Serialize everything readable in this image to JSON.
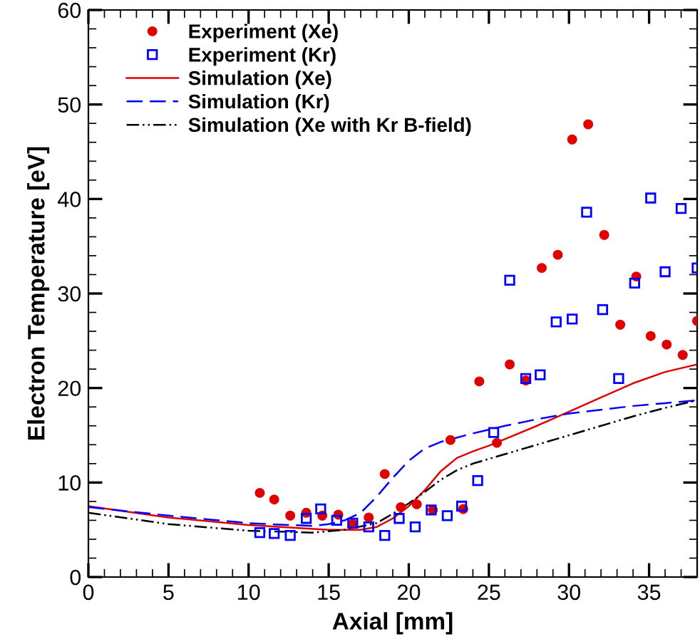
{
  "chart_data": {
    "type": "scatter",
    "xlabel": "Axial [mm]",
    "ylabel": "Electron Temperature [eV]",
    "xlim": [
      0,
      38
    ],
    "xticks": [
      0,
      5,
      10,
      15,
      20,
      25,
      30,
      35
    ],
    "ylim": [
      0,
      60
    ],
    "yticks": [
      0,
      10,
      20,
      30,
      40,
      50,
      60
    ],
    "grid": false,
    "legend": "top left",
    "series": [
      {
        "name": "Experiment (Xe)",
        "marker": "circle",
        "color": "#e00000",
        "x": [
          10.7,
          11.6,
          12.6,
          13.6,
          14.6,
          15.6,
          16.5,
          17.5,
          18.5,
          19.5,
          20.5,
          21.5,
          22.6,
          23.4,
          24.4,
          25.5,
          26.3,
          27.3,
          28.3,
          29.3,
          30.2,
          31.2,
          32.2,
          33.2,
          34.2,
          35.1,
          36.1,
          37.1,
          38.0
        ],
        "values": [
          8.9,
          8.2,
          6.5,
          6.8,
          6.5,
          6.6,
          5.6,
          6.3,
          10.9,
          7.4,
          7.7,
          7.1,
          14.5,
          7.2,
          20.7,
          14.2,
          22.5,
          20.8,
          32.7,
          34.1,
          46.3,
          47.9,
          36.2,
          26.7,
          31.8,
          25.5,
          24.6,
          23.5,
          27.1
        ]
      },
      {
        "name": "Experiment (Kr)",
        "marker": "square",
        "color": "#0000ff",
        "x": [
          10.7,
          11.6,
          12.6,
          13.6,
          14.5,
          15.5,
          16.5,
          17.5,
          18.5,
          19.4,
          20.4,
          21.4,
          22.4,
          23.3,
          24.3,
          25.3,
          26.3,
          27.3,
          28.2,
          29.2,
          30.2,
          31.1,
          32.1,
          33.1,
          34.1,
          35.1,
          36.0,
          37.0,
          38.0
        ],
        "values": [
          4.7,
          4.6,
          4.4,
          6.2,
          7.2,
          6.0,
          5.7,
          5.3,
          4.4,
          6.2,
          5.3,
          7.1,
          6.5,
          7.5,
          10.2,
          15.3,
          31.4,
          21.0,
          21.4,
          27.0,
          27.3,
          38.6,
          28.3,
          21.0,
          31.1,
          40.1,
          32.3,
          39.0,
          32.7
        ]
      },
      {
        "name": "Simulation (Xe)",
        "type": "line",
        "line_style": "solid",
        "color": "#e00000",
        "x": [
          0,
          5,
          10,
          15,
          17,
          18,
          19,
          20,
          21,
          22,
          23,
          24,
          25,
          26,
          28,
          30,
          32,
          34,
          36,
          38
        ],
        "values": [
          7.5,
          6.3,
          5.5,
          5.0,
          5.0,
          5.3,
          6.2,
          7.5,
          9.2,
          11.2,
          12.6,
          13.3,
          13.9,
          14.6,
          16.0,
          17.5,
          19.0,
          20.5,
          21.7,
          22.5
        ]
      },
      {
        "name": "Simulation (Kr)",
        "type": "line",
        "line_style": "dashed",
        "color": "#0000ff",
        "x": [
          0,
          5,
          10,
          14,
          15,
          16,
          17,
          18,
          19,
          20,
          21,
          22,
          24,
          26,
          28,
          30,
          32,
          34,
          36,
          38
        ],
        "values": [
          7.4,
          6.5,
          5.7,
          5.4,
          5.6,
          6.0,
          6.8,
          8.5,
          10.5,
          12.3,
          13.6,
          14.3,
          15.2,
          16.0,
          16.7,
          17.3,
          17.7,
          18.1,
          18.4,
          18.7
        ]
      },
      {
        "name": "Simulation (Xe with Kr B-field)",
        "type": "line",
        "line_style": "dashdot",
        "color": "#000000",
        "x": [
          0,
          5,
          10,
          14,
          16,
          18,
          19,
          20,
          21,
          22,
          23,
          24,
          26,
          28,
          30,
          32,
          34,
          36,
          38
        ],
        "values": [
          6.8,
          5.6,
          4.9,
          4.7,
          5.0,
          5.7,
          6.7,
          7.8,
          9.0,
          10.3,
          11.3,
          12.0,
          13.0,
          14.0,
          15.0,
          16.0,
          17.0,
          17.9,
          18.7
        ]
      }
    ]
  }
}
